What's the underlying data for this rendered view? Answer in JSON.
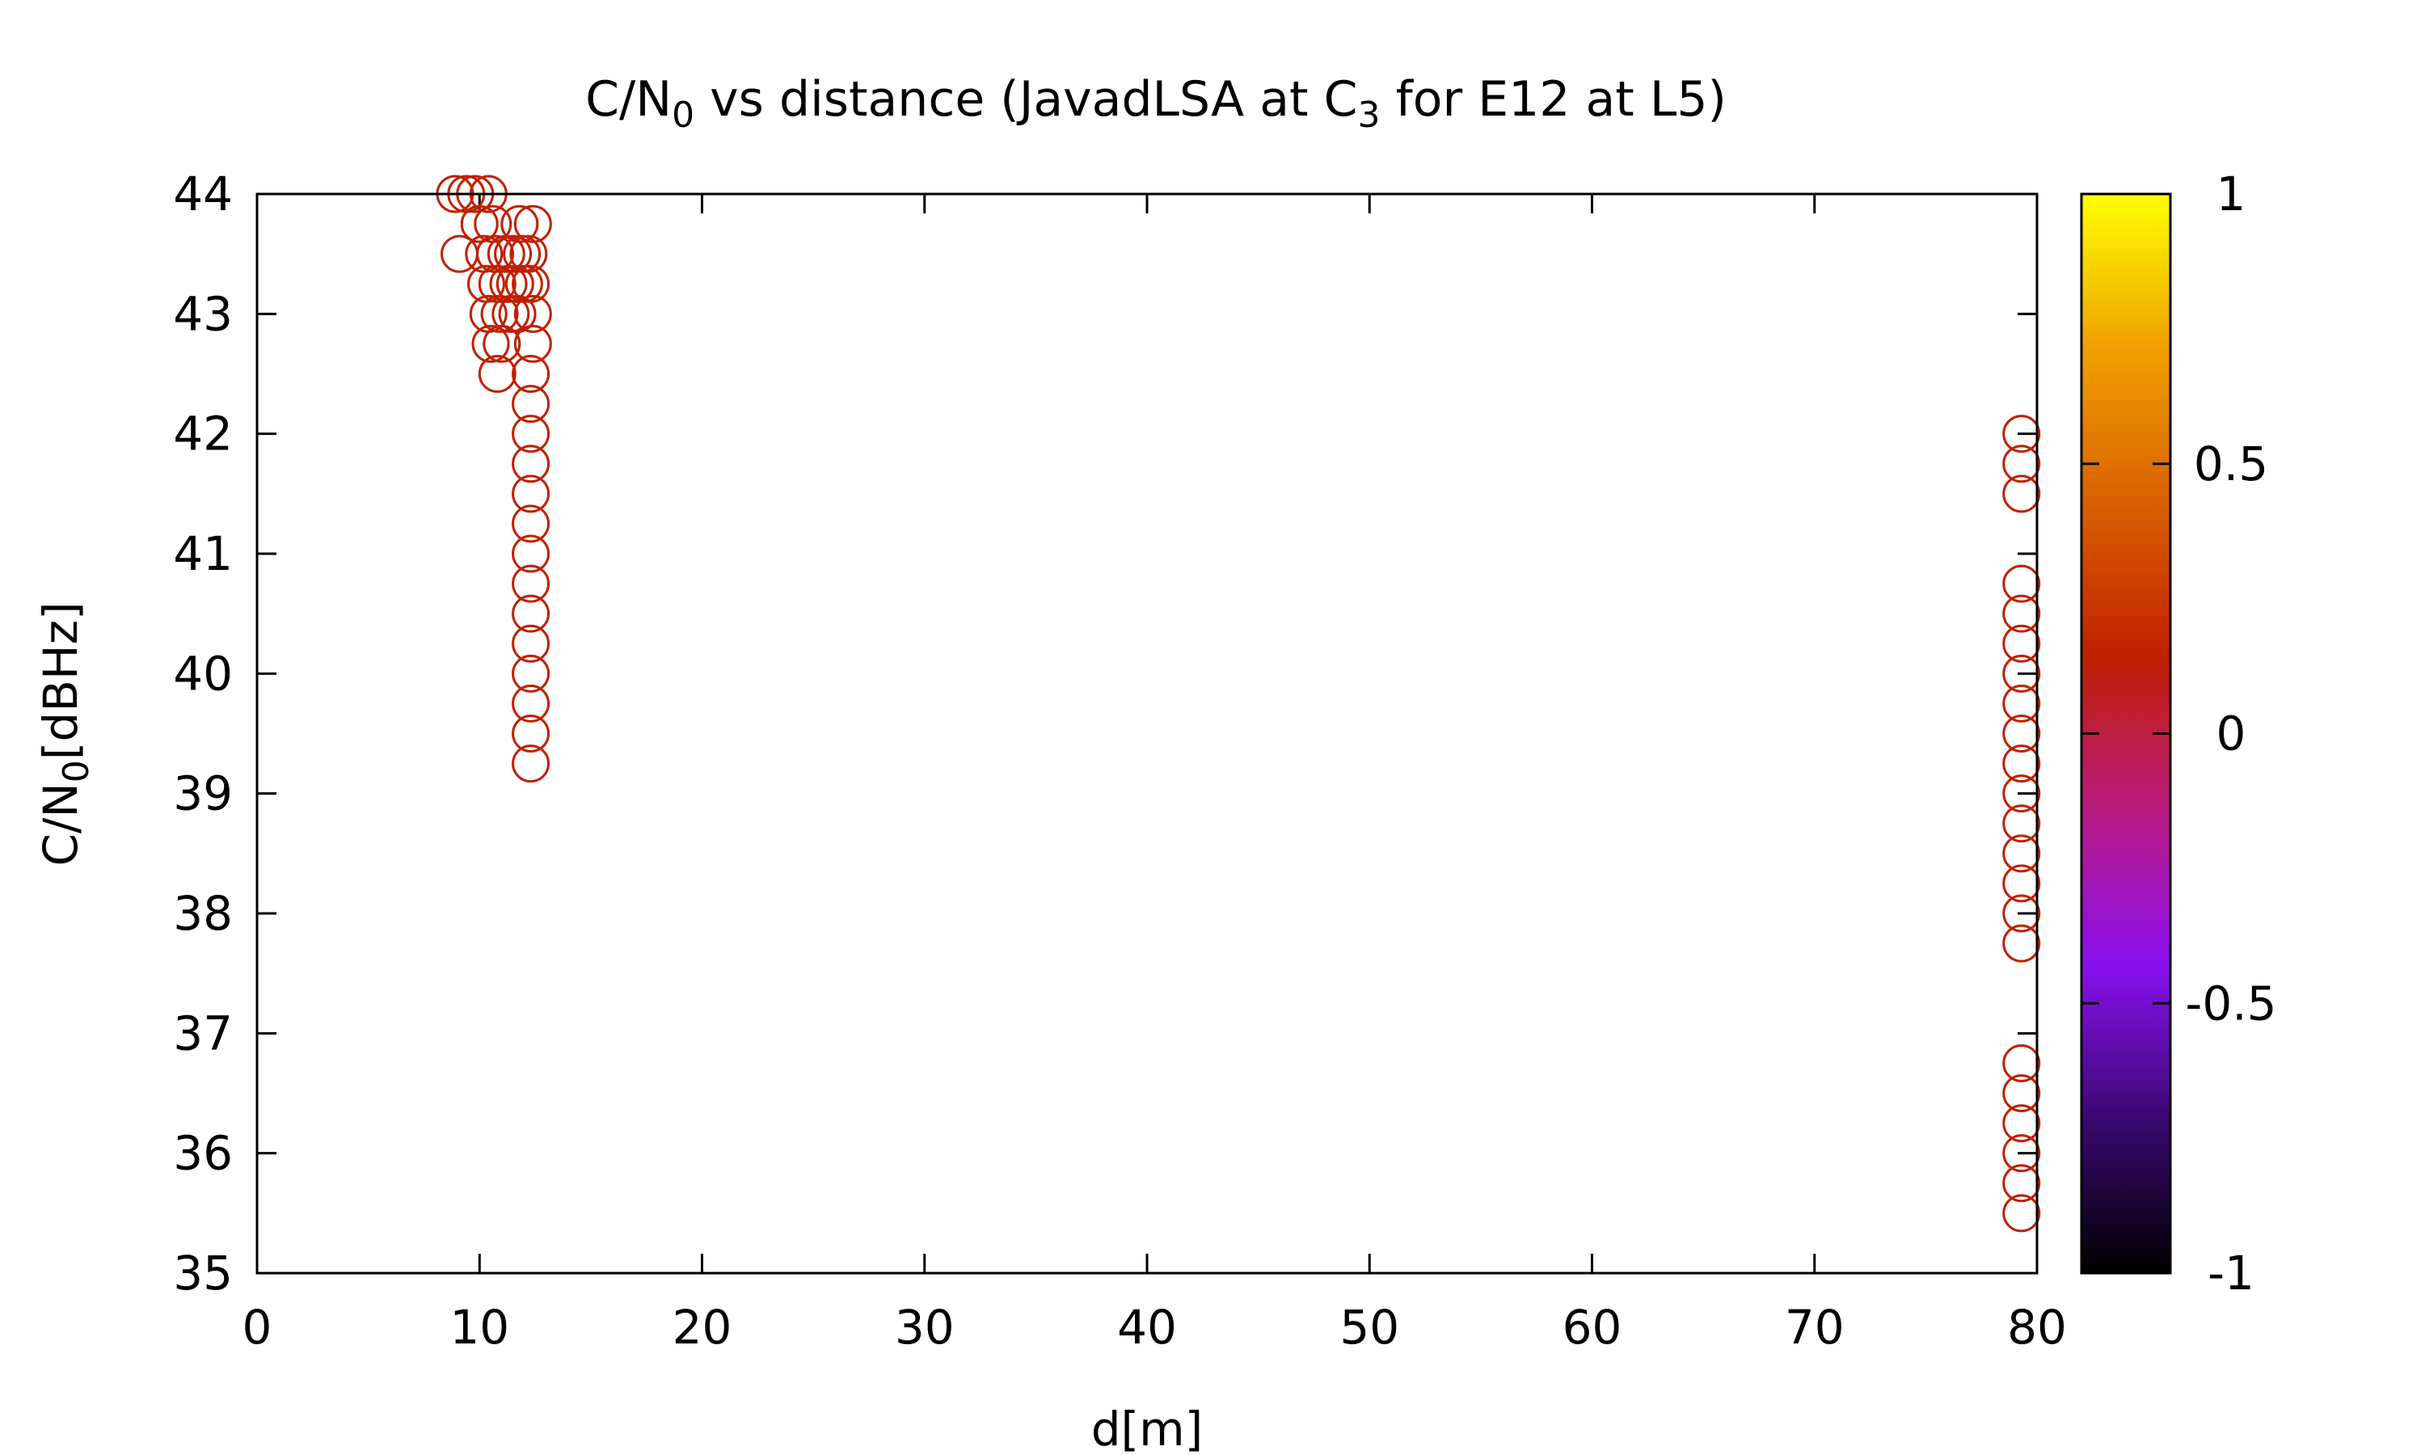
{
  "chart_data": {
    "type": "scatter",
    "title": {
      "main": "C/N",
      "sub0": "0",
      "mid": " vs distance (JavadLSA at C",
      "sub3": "3",
      "end": " for E12 at L5)"
    },
    "xlabel": "d[m]",
    "ylabel": {
      "main": "C/N",
      "sub": "0",
      "end": "[dBHz]"
    },
    "xlim": [
      0,
      80
    ],
    "ylim": [
      35,
      44
    ],
    "x_ticks": [
      "0",
      "10",
      "20",
      "30",
      "40",
      "50",
      "60",
      "70",
      "80"
    ],
    "y_ticks": [
      "35",
      "36",
      "37",
      "38",
      "39",
      "40",
      "41",
      "42",
      "43",
      "44"
    ],
    "colorbar": {
      "range": [
        -1,
        1
      ],
      "ticks": [
        "-1",
        "-0.5",
        "0",
        "0.5",
        "1"
      ],
      "palette": [
        "#000000",
        "#3a0870",
        "#8a10f0",
        "#b91a80",
        "#c02000",
        "#d86000",
        "#f0a000",
        "#ffff00"
      ]
    },
    "marker": "open-circle",
    "marker_color": "#c02000",
    "points": [
      [
        8.9,
        44.0
      ],
      [
        9.4,
        44.0
      ],
      [
        9.8,
        44.0
      ],
      [
        10.4,
        44.0
      ],
      [
        9.1,
        43.5
      ],
      [
        10.0,
        43.75
      ],
      [
        10.2,
        43.5
      ],
      [
        10.6,
        43.75
      ],
      [
        10.3,
        43.25
      ],
      [
        10.4,
        43.0
      ],
      [
        10.5,
        42.75
      ],
      [
        10.7,
        43.5
      ],
      [
        10.8,
        43.25
      ],
      [
        10.9,
        43.0
      ],
      [
        11.0,
        42.75
      ],
      [
        10.8,
        42.5
      ],
      [
        11.2,
        43.5
      ],
      [
        11.3,
        43.25
      ],
      [
        11.4,
        43.0
      ],
      [
        11.5,
        43.5
      ],
      [
        11.6,
        43.25
      ],
      [
        11.7,
        43.0
      ],
      [
        11.8,
        43.75
      ],
      [
        11.9,
        43.5
      ],
      [
        12.0,
        43.25
      ],
      [
        12.2,
        43.5
      ],
      [
        12.3,
        43.25
      ],
      [
        12.4,
        43.75
      ],
      [
        12.4,
        43.0
      ],
      [
        12.4,
        42.75
      ],
      [
        12.3,
        42.5
      ],
      [
        12.3,
        42.25
      ],
      [
        12.3,
        42.0
      ],
      [
        12.3,
        41.75
      ],
      [
        12.3,
        41.5
      ],
      [
        12.3,
        41.25
      ],
      [
        12.3,
        41.0
      ],
      [
        12.3,
        40.75
      ],
      [
        12.3,
        40.5
      ],
      [
        12.3,
        40.25
      ],
      [
        12.3,
        40.0
      ],
      [
        12.3,
        39.75
      ],
      [
        12.3,
        39.5
      ],
      [
        12.3,
        39.25
      ],
      [
        79.3,
        42.0
      ],
      [
        79.3,
        41.75
      ],
      [
        79.3,
        41.5
      ],
      [
        79.3,
        40.75
      ],
      [
        79.3,
        40.5
      ],
      [
        79.3,
        40.25
      ],
      [
        79.3,
        40.0
      ],
      [
        79.3,
        39.75
      ],
      [
        79.3,
        39.5
      ],
      [
        79.3,
        39.25
      ],
      [
        79.3,
        39.0
      ],
      [
        79.3,
        38.75
      ],
      [
        79.3,
        38.5
      ],
      [
        79.3,
        38.25
      ],
      [
        79.3,
        38.0
      ],
      [
        79.3,
        37.75
      ],
      [
        79.3,
        36.75
      ],
      [
        79.3,
        36.5
      ],
      [
        79.3,
        36.25
      ],
      [
        79.3,
        36.0
      ],
      [
        79.3,
        35.75
      ],
      [
        79.3,
        35.5
      ]
    ]
  }
}
